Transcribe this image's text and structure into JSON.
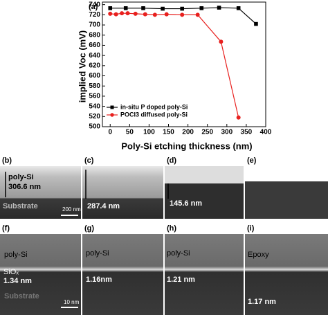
{
  "chart_data": {
    "type": "line",
    "panel_label": "(a)",
    "xlabel": "Poly-Si etching thickness (nm)",
    "ylabel": "implied Voc (mV)",
    "xlim": [
      -20,
      400
    ],
    "ylim": [
      500,
      745
    ],
    "xticks": [
      0,
      50,
      100,
      150,
      200,
      250,
      300,
      350,
      400
    ],
    "yticks": [
      500,
      520,
      540,
      560,
      580,
      600,
      620,
      640,
      660,
      680,
      700,
      720,
      740
    ],
    "legend": "lower left",
    "series": [
      {
        "name": "in-situ P doped poly-Si",
        "color": "#000000",
        "marker": "square",
        "x": [
          0,
          40,
          85,
          135,
          185,
          235,
          280,
          330,
          375
        ],
        "values": [
          733,
          733,
          733,
          732,
          732,
          733,
          734,
          733,
          702
        ]
      },
      {
        "name": "POCl3 diffused poly-Si",
        "color": "#e8201e",
        "marker": "circle",
        "x": [
          0,
          15,
          30,
          45,
          65,
          90,
          115,
          145,
          185,
          225,
          285,
          330
        ],
        "values": [
          722,
          721,
          723,
          723,
          722,
          721,
          720,
          721,
          720,
          720,
          667,
          518
        ]
      }
    ]
  },
  "panels": [
    {
      "label": "(b)",
      "texts": [
        "poly-Si",
        "306.6 nm",
        "Substrate",
        "200 nm"
      ]
    },
    {
      "label": "(c)",
      "texts": [
        "287.4 nm"
      ]
    },
    {
      "label": "(d)",
      "texts": [
        "145.6 nm"
      ]
    },
    {
      "label": "(e)",
      "texts": []
    },
    {
      "label": "(f)",
      "texts": [
        "poly-Si",
        "SiOₓ",
        "1.34 nm",
        "Substrate",
        "10 nm"
      ]
    },
    {
      "label": "(g)",
      "texts": [
        "poly-Si",
        "1.16nm"
      ]
    },
    {
      "label": "(h)",
      "texts": [
        "poly-Si",
        "1.21 nm"
      ]
    },
    {
      "label": "(i)",
      "texts": [
        "Epoxy",
        "1.17 nm"
      ]
    }
  ]
}
